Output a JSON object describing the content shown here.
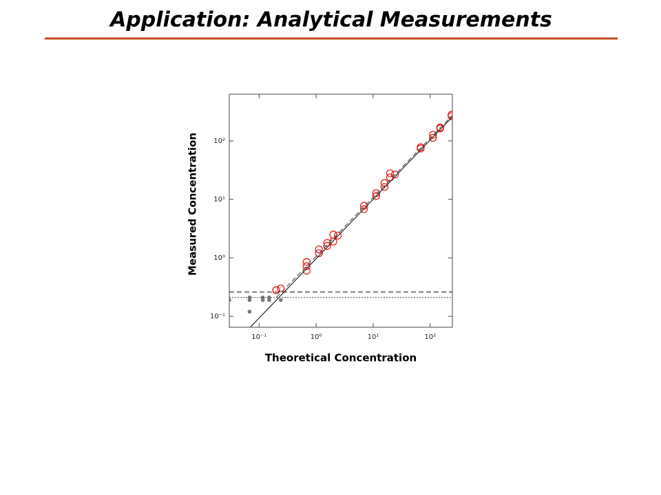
{
  "header": {
    "title": "Application: Analytical Measurements"
  },
  "chart_data": {
    "type": "scatter",
    "x_label": "Theoretical Concentration",
    "y_label": "Measured Concentration",
    "xscale": "log",
    "yscale": "log",
    "xlim": [
      0.03,
      245
    ],
    "ylim": [
      0.065,
      630
    ],
    "xticks": [
      {
        "value": 0.1,
        "label": "10⁻¹"
      },
      {
        "value": 1,
        "label": "10⁰"
      },
      {
        "value": 10,
        "label": "10¹"
      },
      {
        "value": 100,
        "label": "10²"
      }
    ],
    "yticks": [
      {
        "value": 0.1,
        "label": "10⁻¹"
      },
      {
        "value": 1,
        "label": "10⁰"
      },
      {
        "value": 10,
        "label": "10¹"
      },
      {
        "value": 100,
        "label": "10²"
      }
    ],
    "series": [
      {
        "marker": "hollow",
        "color": "#e8201a",
        "x": [
          0.2,
          0.2,
          0.24,
          0.68,
          0.68,
          0.68,
          1.12,
          1.12,
          1.56,
          1.56,
          2.0,
          2.0,
          2.4,
          6.9,
          6.9,
          11.3,
          11.3,
          15.8,
          15.8,
          19.8,
          19.8,
          24,
          68,
          68,
          112,
          112,
          150,
          150,
          237,
          237
        ],
        "values": [
          0.28,
          0.28,
          0.3,
          0.85,
          0.72,
          0.6,
          1.2,
          1.4,
          1.6,
          1.8,
          1.9,
          2.5,
          2.4,
          6.8,
          7.8,
          11.4,
          12.8,
          16.3,
          19,
          23.7,
          28,
          26.6,
          74,
          78,
          113,
          127,
          164,
          170,
          265,
          280
        ]
      },
      {
        "marker": "filled",
        "color": "#777777",
        "x": [
          0.03,
          0.068,
          0.068,
          0.068,
          0.116,
          0.116,
          0.15,
          0.15,
          0.24
        ],
        "values": [
          0.19,
          0.21,
          0.19,
          0.12,
          0.21,
          0.19,
          0.21,
          0.19,
          0.19
        ]
      },
      {
        "line": "solid",
        "color": "#222222",
        "x": [
          0.07,
          245
        ],
        "values": [
          0.065,
          258
        ]
      },
      {
        "line": "dashed",
        "color": "#555555",
        "x": [
          0.2,
          245
        ],
        "values": [
          0.21,
          275
        ]
      },
      {
        "line": "dashed",
        "color": "#222222",
        "x": [
          0.03,
          245
        ],
        "values": [
          0.26,
          0.26
        ]
      },
      {
        "line": "dotted",
        "color": "#555555",
        "x": [
          0.03,
          245
        ],
        "values": [
          0.21,
          0.21
        ]
      }
    ]
  }
}
